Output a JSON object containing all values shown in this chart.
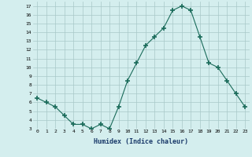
{
  "x": [
    0,
    1,
    2,
    3,
    4,
    5,
    6,
    7,
    8,
    9,
    10,
    11,
    12,
    13,
    14,
    15,
    16,
    17,
    18,
    19,
    20,
    21,
    22,
    23
  ],
  "y": [
    6.5,
    6.0,
    5.5,
    4.5,
    3.5,
    3.5,
    3.0,
    3.5,
    3.0,
    5.5,
    8.5,
    10.5,
    12.5,
    13.5,
    14.5,
    16.5,
    17.0,
    16.5,
    13.5,
    10.5,
    10.0,
    8.5,
    7.0,
    5.5
  ],
  "line_color": "#1a6b5a",
  "marker": "+",
  "marker_size": 4,
  "bg_color": "#d4eeee",
  "grid_color": "#a8c8c8",
  "xlabel": "Humidex (Indice chaleur)",
  "xlim": [
    -0.5,
    23.5
  ],
  "ylim": [
    3,
    17.5
  ],
  "yticks": [
    3,
    4,
    5,
    6,
    7,
    8,
    9,
    10,
    11,
    12,
    13,
    14,
    15,
    16,
    17
  ],
  "xticks": [
    0,
    1,
    2,
    3,
    4,
    5,
    6,
    7,
    8,
    9,
    10,
    11,
    12,
    13,
    14,
    15,
    16,
    17,
    18,
    19,
    20,
    21,
    22,
    23
  ]
}
